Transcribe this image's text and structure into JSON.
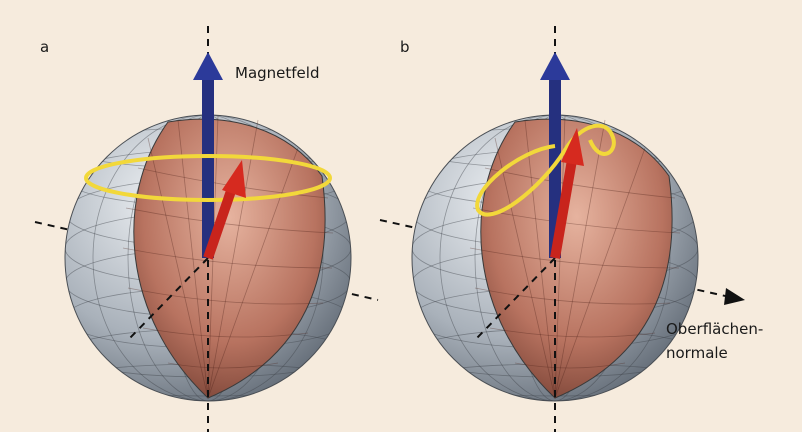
{
  "panels": [
    {
      "label": "a",
      "annotation": "Magnetfeld"
    },
    {
      "label": "b",
      "annotation_lines": [
        "Oberflächen-",
        "normale"
      ]
    }
  ]
}
